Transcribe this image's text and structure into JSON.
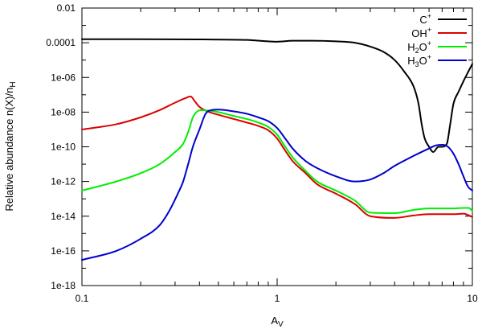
{
  "chart_data": {
    "type": "line",
    "xscale": "log",
    "yscale": "log",
    "xlim": [
      0.1,
      10
    ],
    "ylim": [
      1e-18,
      0.01
    ],
    "xticks": [
      {
        "value": 0.1,
        "label": "0.1"
      },
      {
        "value": 1,
        "label": "1"
      },
      {
        "value": 10,
        "label": "10"
      }
    ],
    "yticks": [
      {
        "value": 0.01,
        "label": "0.01"
      },
      {
        "value": 0.0001,
        "label": "0.0001"
      },
      {
        "value": 1e-06,
        "label": "1e-06"
      },
      {
        "value": 1e-08,
        "label": "1e-08"
      },
      {
        "value": 1e-10,
        "label": "1e-10"
      },
      {
        "value": 1e-12,
        "label": "1e-12"
      },
      {
        "value": 1e-14,
        "label": "1e-14"
      },
      {
        "value": 1e-16,
        "label": "1e-16"
      },
      {
        "value": 1e-18,
        "label": "1e-18"
      }
    ],
    "xlabel": {
      "main": "A",
      "sub": "V"
    },
    "ylabel": {
      "main": "Relative abundance n(X)/n",
      "sub": "H"
    },
    "grid": false,
    "legend_position": "top-right",
    "series": [
      {
        "name": "C+",
        "legend": {
          "base": "C",
          "sub": "",
          "sup": "+"
        },
        "color": "#000000",
        "points": [
          [
            0.1,
            0.00016
          ],
          [
            0.2,
            0.00016
          ],
          [
            0.4,
            0.000155
          ],
          [
            0.7,
            0.000145
          ],
          [
            0.9,
            0.00012
          ],
          [
            1.0,
            0.000115
          ],
          [
            1.2,
            0.00013
          ],
          [
            1.5,
            0.00013
          ],
          [
            2.0,
            0.00012
          ],
          [
            2.5,
            0.0001
          ],
          [
            3.0,
            6e-05
          ],
          [
            3.5,
            3e-05
          ],
          [
            4.0,
            1e-05
          ],
          [
            4.5,
            2e-06
          ],
          [
            5.0,
            3e-07
          ],
          [
            5.3,
            3e-08
          ],
          [
            5.5,
            2e-09
          ],
          [
            5.7,
            3e-10
          ],
          [
            6.0,
            1e-10
          ],
          [
            6.3,
            5e-11
          ],
          [
            6.7,
            1e-10
          ],
          [
            7.0,
            1e-10
          ],
          [
            7.4,
            1.5e-10
          ],
          [
            7.7,
            2e-09
          ],
          [
            8.0,
            3e-08
          ],
          [
            8.5,
            1.5e-07
          ],
          [
            9.0,
            6e-07
          ],
          [
            9.5,
            2e-06
          ],
          [
            10.0,
            6e-06
          ]
        ]
      },
      {
        "name": "OH+",
        "legend": {
          "base": "OH",
          "sub": "",
          "sup": "+"
        },
        "color": "#dd0000",
        "points": [
          [
            0.1,
            1e-09
          ],
          [
            0.15,
            2e-09
          ],
          [
            0.2,
            5e-09
          ],
          [
            0.25,
            1.3e-08
          ],
          [
            0.3,
            3.5e-08
          ],
          [
            0.34,
            6.5e-08
          ],
          [
            0.36,
            8e-08
          ],
          [
            0.38,
            4e-08
          ],
          [
            0.4,
            2e-08
          ],
          [
            0.45,
            1e-08
          ],
          [
            0.5,
            7e-09
          ],
          [
            0.6,
            4e-09
          ],
          [
            0.7,
            2.5e-09
          ],
          [
            0.8,
            1.6e-09
          ],
          [
            0.9,
            9e-10
          ],
          [
            1.0,
            3e-10
          ],
          [
            1.1,
            6e-11
          ],
          [
            1.2,
            1.5e-11
          ],
          [
            1.4,
            3e-12
          ],
          [
            1.6,
            7e-13
          ],
          [
            2.0,
            2e-13
          ],
          [
            2.5,
            5e-14
          ],
          [
            3.0,
            1e-14
          ],
          [
            4.0,
            8e-15
          ],
          [
            5.0,
            1.1e-14
          ],
          [
            6.0,
            1.3e-14
          ],
          [
            8.0,
            1.3e-14
          ],
          [
            9.0,
            1.4e-14
          ],
          [
            10.0,
            9e-15
          ]
        ]
      },
      {
        "name": "H2O+",
        "legend": {
          "base": "H",
          "sub": "2",
          "rest": "O",
          "sup": "+"
        },
        "color": "#00ee00",
        "points": [
          [
            0.1,
            3e-13
          ],
          [
            0.15,
            1e-12
          ],
          [
            0.2,
            3e-12
          ],
          [
            0.25,
            1e-11
          ],
          [
            0.3,
            5e-11
          ],
          [
            0.33,
            1.5e-10
          ],
          [
            0.35,
            7e-10
          ],
          [
            0.37,
            5e-09
          ],
          [
            0.39,
            1.1e-08
          ],
          [
            0.41,
            1.3e-08
          ],
          [
            0.45,
            1.2e-08
          ],
          [
            0.5,
            1e-08
          ],
          [
            0.6,
            6e-09
          ],
          [
            0.7,
            4e-09
          ],
          [
            0.8,
            2.5e-09
          ],
          [
            0.9,
            1.4e-09
          ],
          [
            1.0,
            5e-10
          ],
          [
            1.1,
            1e-10
          ],
          [
            1.2,
            2.5e-11
          ],
          [
            1.4,
            4e-12
          ],
          [
            1.6,
            1e-12
          ],
          [
            2.0,
            3e-13
          ],
          [
            2.5,
            8e-14
          ],
          [
            3.0,
            1.6e-14
          ],
          [
            4.0,
            1.5e-14
          ],
          [
            5.0,
            2.3e-14
          ],
          [
            6.0,
            2.8e-14
          ],
          [
            8.0,
            2.8e-14
          ],
          [
            9.0,
            3e-14
          ],
          [
            9.6,
            3e-14
          ],
          [
            10.0,
            2e-14
          ]
        ]
      },
      {
        "name": "H3O+",
        "legend": {
          "base": "H",
          "sub": "3",
          "rest": "O",
          "sup": "+"
        },
        "color": "#0000cc",
        "points": [
          [
            0.1,
            3e-17
          ],
          [
            0.15,
            1e-16
          ],
          [
            0.2,
            5e-16
          ],
          [
            0.25,
            3e-15
          ],
          [
            0.28,
            2e-14
          ],
          [
            0.31,
            2e-13
          ],
          [
            0.33,
            1e-12
          ],
          [
            0.35,
            1e-11
          ],
          [
            0.37,
            1e-10
          ],
          [
            0.4,
            1e-09
          ],
          [
            0.43,
            8e-09
          ],
          [
            0.46,
            1.3e-08
          ],
          [
            0.5,
            1.4e-08
          ],
          [
            0.6,
            1.1e-08
          ],
          [
            0.7,
            8e-09
          ],
          [
            0.8,
            5e-09
          ],
          [
            0.9,
            3e-09
          ],
          [
            1.0,
            1.2e-09
          ],
          [
            1.1,
            3e-10
          ],
          [
            1.2,
            8e-11
          ],
          [
            1.4,
            1.5e-11
          ],
          [
            1.6,
            6e-12
          ],
          [
            2.0,
            2e-12
          ],
          [
            2.5,
            1e-12
          ],
          [
            3.0,
            1.3e-12
          ],
          [
            3.5,
            3e-12
          ],
          [
            4.0,
            8e-12
          ],
          [
            5.0,
            3e-11
          ],
          [
            6.0,
            8e-11
          ],
          [
            6.5,
            1.2e-10
          ],
          [
            7.0,
            1.3e-10
          ],
          [
            7.5,
            1e-10
          ],
          [
            8.0,
            4e-11
          ],
          [
            8.5,
            1e-11
          ],
          [
            9.0,
            2e-12
          ],
          [
            9.5,
            5e-13
          ],
          [
            10.0,
            3e-13
          ]
        ]
      }
    ]
  }
}
